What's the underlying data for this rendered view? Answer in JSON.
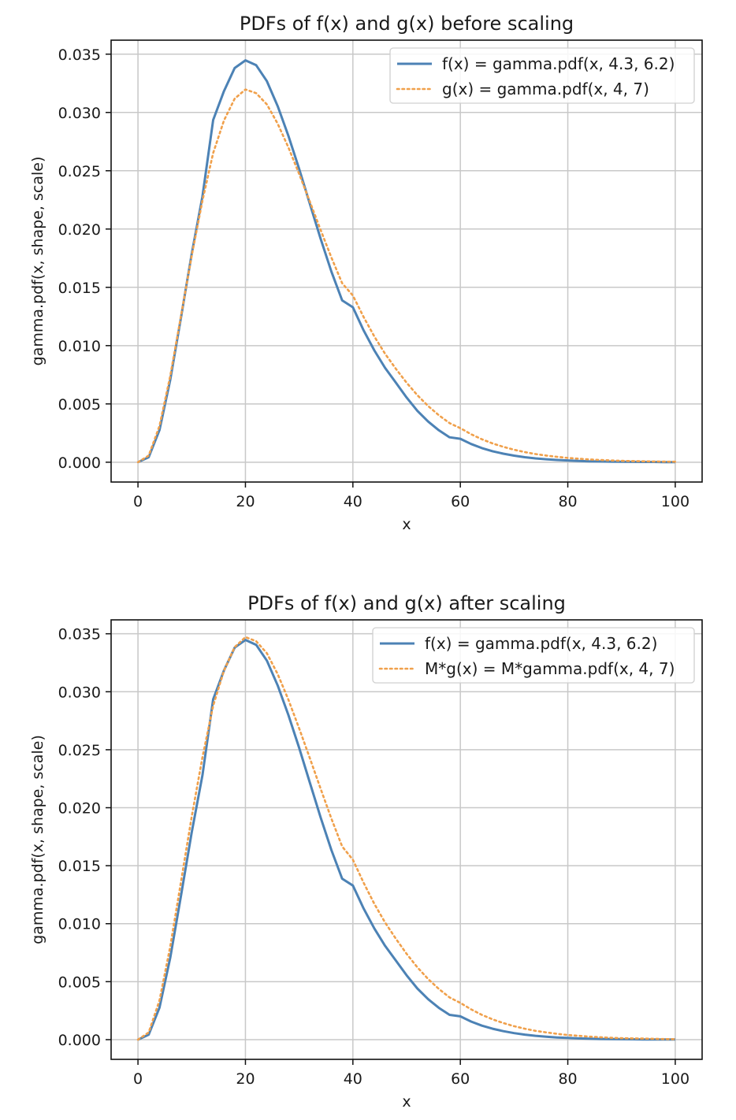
{
  "chart_data": [
    {
      "type": "line",
      "title": "PDFs of f(x) and g(x) before scaling",
      "xlabel": "x",
      "ylabel": "gamma.pdf(x, shape, scale)",
      "xlim": [
        -5,
        105
      ],
      "ylim": [
        -0.0017,
        0.0362
      ],
      "xticks": [
        0,
        20,
        40,
        60,
        80,
        100
      ],
      "xtick_labels": [
        "0",
        "20",
        "40",
        "60",
        "80",
        "100"
      ],
      "yticks": [
        0,
        0.005,
        0.01,
        0.015,
        0.02,
        0.025,
        0.03,
        0.035
      ],
      "ytick_labels": [
        "0.000",
        "0.005",
        "0.010",
        "0.015",
        "0.020",
        "0.025",
        "0.030",
        "0.035"
      ],
      "grid": true,
      "legend_position": "top-right",
      "x": [
        0,
        2,
        4,
        6,
        8,
        10,
        12,
        14,
        16,
        18,
        20,
        22,
        24,
        26,
        28,
        30,
        32,
        34,
        36,
        38,
        40,
        42,
        44,
        46,
        48,
        50,
        52,
        54,
        56,
        58,
        60,
        62,
        64,
        66,
        68,
        70,
        72,
        74,
        76,
        78,
        80,
        82,
        84,
        86,
        88,
        90,
        92,
        94,
        96,
        98,
        100
      ],
      "series": [
        {
          "name": "f(x) = gamma.pdf(x, 4.3, 6.2)",
          "color": "#4c82b5",
          "style": "solid",
          "values": [
            0,
            0.00043,
            0.00276,
            0.00705,
            0.01238,
            0.01788,
            0.02279,
            0.02935,
            0.03183,
            0.03381,
            0.03447,
            0.03405,
            0.03268,
            0.03054,
            0.02799,
            0.02517,
            0.02214,
            0.01916,
            0.01636,
            0.01388,
            0.01329,
            0.0113,
            0.00958,
            0.00809,
            0.00682,
            0.00555,
            0.00441,
            0.00349,
            0.00274,
            0.00214,
            0.00201,
            0.00156,
            0.00121,
            0.00094,
            0.00073,
            0.00056,
            0.00043,
            0.00033,
            0.00025,
            0.00019,
            0.00015,
            0.00011,
            8e-05,
            6e-05,
            5e-05,
            4e-05,
            3e-05,
            2e-05,
            2e-05,
            1e-05,
            1e-05
          ]
        },
        {
          "name": "g(x) = gamma.pdf(x, 4, 7)",
          "color": "#f0a04b",
          "style": "dotted",
          "values": [
            0,
            0.00057,
            0.00311,
            0.00738,
            0.01251,
            0.01772,
            0.02243,
            0.02652,
            0.02931,
            0.03118,
            0.03197,
            0.03165,
            0.03069,
            0.02903,
            0.027,
            0.02473,
            0.02234,
            0.01992,
            0.01757,
            0.01535,
            0.0143,
            0.01245,
            0.01078,
            0.0093,
            0.00801,
            0.00682,
            0.00575,
            0.00482,
            0.00403,
            0.00335,
            0.00292,
            0.0024,
            0.00197,
            0.00161,
            0.00132,
            0.00107,
            0.00087,
            0.0007,
            0.00057,
            0.00046,
            0.00037,
            0.0003,
            0.00024,
            0.00019,
            0.00015,
            0.00012,
            0.0001,
            8e-05,
            6e-05,
            5e-05,
            4e-05
          ]
        }
      ]
    },
    {
      "type": "line",
      "title": "PDFs of f(x) and g(x) after scaling",
      "xlabel": "x",
      "ylabel": "gamma.pdf(x, shape, scale)",
      "xlim": [
        -5,
        105
      ],
      "ylim": [
        -0.0017,
        0.0362
      ],
      "xticks": [
        0,
        20,
        40,
        60,
        80,
        100
      ],
      "xtick_labels": [
        "0",
        "20",
        "40",
        "60",
        "80",
        "100"
      ],
      "yticks": [
        0,
        0.005,
        0.01,
        0.015,
        0.02,
        0.025,
        0.03,
        0.035
      ],
      "ytick_labels": [
        "0.000",
        "0.005",
        "0.010",
        "0.015",
        "0.020",
        "0.025",
        "0.030",
        "0.035"
      ],
      "grid": true,
      "legend_position": "top-right",
      "x": [
        0,
        2,
        4,
        6,
        8,
        10,
        12,
        14,
        16,
        18,
        20,
        22,
        24,
        26,
        28,
        30,
        32,
        34,
        36,
        38,
        40,
        42,
        44,
        46,
        48,
        50,
        52,
        54,
        56,
        58,
        60,
        62,
        64,
        66,
        68,
        70,
        72,
        74,
        76,
        78,
        80,
        82,
        84,
        86,
        88,
        90,
        92,
        94,
        96,
        98,
        100
      ],
      "series": [
        {
          "name": "f(x) = gamma.pdf(x, 4.3, 6.2)",
          "color": "#4c82b5",
          "style": "solid",
          "values": [
            0,
            0.00043,
            0.00276,
            0.00705,
            0.01238,
            0.01788,
            0.02279,
            0.02935,
            0.03183,
            0.03381,
            0.03447,
            0.03405,
            0.03268,
            0.03054,
            0.02799,
            0.02517,
            0.02214,
            0.01916,
            0.01636,
            0.01388,
            0.01329,
            0.0113,
            0.00958,
            0.00809,
            0.00682,
            0.00555,
            0.00441,
            0.00349,
            0.00274,
            0.00214,
            0.00201,
            0.00156,
            0.00121,
            0.00094,
            0.00073,
            0.00056,
            0.00043,
            0.00033,
            0.00025,
            0.00019,
            0.00015,
            0.00011,
            8e-05,
            6e-05,
            5e-05,
            4e-05,
            3e-05,
            2e-05,
            2e-05,
            1e-05,
            1e-05
          ]
        },
        {
          "name": "M*g(x) = M*gamma.pdf(x, 4, 7)",
          "color": "#f0a04b",
          "style": "dotted",
          "values": [
            0,
            0.00062,
            0.00338,
            0.00801,
            0.01358,
            0.01924,
            0.02435,
            0.02879,
            0.03182,
            0.03385,
            0.03471,
            0.03436,
            0.03332,
            0.03152,
            0.02931,
            0.02685,
            0.02425,
            0.02163,
            0.01907,
            0.01666,
            0.01552,
            0.01352,
            0.0117,
            0.0101,
            0.0087,
            0.0074,
            0.00624,
            0.00523,
            0.00437,
            0.00364,
            0.00317,
            0.00261,
            0.00214,
            0.00175,
            0.00143,
            0.00116,
            0.00094,
            0.00076,
            0.00062,
            0.0005,
            0.0004,
            0.00033,
            0.00026,
            0.00021,
            0.00016,
            0.00013,
            0.00011,
            9e-05,
            7e-05,
            5e-05,
            4e-05
          ]
        }
      ]
    }
  ]
}
